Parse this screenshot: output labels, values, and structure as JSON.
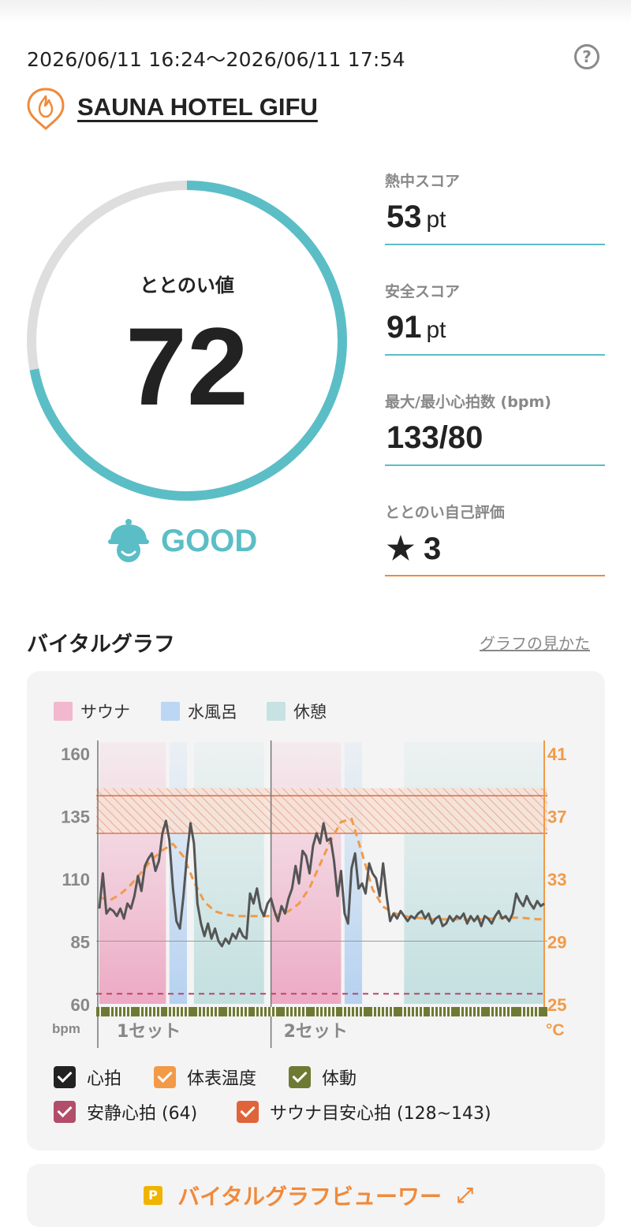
{
  "session": {
    "date_range": "2026/06/11 16:24〜2026/06/11 17:54"
  },
  "facility": {
    "name": "SAUNA HOTEL GIFU",
    "icon": "sauna-flame-pin-icon"
  },
  "totonoi": {
    "label": "ととのい値",
    "value": "72",
    "progress": 0.72,
    "status": "GOOD",
    "status_icon": "smiling-face-with-sauna-hat-icon"
  },
  "stats": [
    {
      "label": "熱中スコア",
      "value": "53",
      "unit": "pt"
    },
    {
      "label": "安全スコア",
      "value": "91",
      "unit": "pt"
    },
    {
      "label": "最大/最小心拍数 (bpm)",
      "value": "133/80",
      "unit": ""
    },
    {
      "label": "ととのい自己評価",
      "value": "3",
      "unit": "",
      "icon": "star-icon"
    }
  ],
  "graph": {
    "title": "バイタルグラフ",
    "howto_link": "グラフの見かた",
    "legend": [
      {
        "label": "サウナ",
        "color": "#f2b9ce"
      },
      {
        "label": "水風呂",
        "color": "#bcd7f3"
      },
      {
        "label": "休憩",
        "color": "#c7e2e2"
      }
    ],
    "checkboxes": [
      {
        "label": "心拍",
        "color": "#222222"
      },
      {
        "label": "体表温度",
        "color": "#f29a48"
      },
      {
        "label": "体動",
        "color": "#6e7a33"
      },
      {
        "label": "安静心拍 (64)",
        "color": "#b24e6a"
      },
      {
        "label": "サウナ目安心拍 (128~143)",
        "color": "#e0643a"
      }
    ]
  },
  "chart_data": {
    "type": "line",
    "y_left": {
      "ticks": [
        160,
        135,
        110,
        85,
        60
      ],
      "unit": "bpm",
      "range": [
        60,
        160
      ]
    },
    "y_right": {
      "ticks": [
        41,
        37,
        33,
        29,
        25
      ],
      "unit": "°C",
      "range": [
        25,
        41
      ]
    },
    "set_labels": [
      "1セット",
      "2セット"
    ],
    "resting_hr": 64,
    "sauna_target_hr": [
      128,
      143
    ],
    "phases": [
      {
        "type": "sauna",
        "t": [
          0,
          19
        ]
      },
      {
        "type": "water",
        "t": [
          20,
          25
        ]
      },
      {
        "type": "rest",
        "t": [
          27,
          47
        ]
      },
      {
        "type": "sauna",
        "t": [
          49,
          69
        ]
      },
      {
        "type": "water",
        "t": [
          70,
          75
        ]
      },
      {
        "type": "rest",
        "t": [
          87,
          127
        ]
      }
    ],
    "series": [
      {
        "name": "心拍",
        "x": [
          0,
          1,
          2,
          3,
          4,
          5,
          6,
          7,
          8,
          9,
          10,
          11,
          12,
          13,
          14,
          15,
          16,
          17,
          18,
          19,
          20,
          21,
          22,
          23,
          24,
          25,
          26,
          27,
          28,
          29,
          30,
          31,
          32,
          33,
          34,
          35,
          36,
          37,
          38,
          39,
          40,
          41,
          42,
          43,
          44,
          45,
          46,
          47,
          48,
          49,
          50,
          51,
          52,
          53,
          54,
          55,
          56,
          57,
          58,
          59,
          60,
          61,
          62,
          63,
          64,
          65,
          66,
          67,
          68,
          69,
          70,
          71,
          72,
          73,
          74,
          75,
          76,
          77,
          78,
          79,
          80,
          81,
          82,
          83,
          84,
          85,
          86,
          87,
          88,
          89,
          90,
          91,
          92,
          93,
          94,
          95,
          96,
          97,
          98,
          99,
          100,
          101,
          102,
          103,
          104,
          105,
          106,
          107,
          108,
          109,
          110,
          111,
          112,
          113,
          114,
          115,
          116,
          117,
          118,
          119,
          120,
          121,
          122,
          123,
          124,
          125,
          126,
          127
        ],
        "y": [
          98,
          112,
          96,
          98,
          97,
          95,
          98,
          94,
          100,
          98,
          103,
          111,
          105,
          115,
          118,
          120,
          113,
          117,
          128,
          133,
          125,
          106,
          93,
          90,
          103,
          119,
          132,
          124,
          100,
          92,
          87,
          92,
          86,
          90,
          85,
          83,
          86,
          84,
          88,
          86,
          90,
          87,
          86,
          104,
          100,
          106,
          98,
          95,
          100,
          102,
          97,
          93,
          99,
          96,
          102,
          106,
          115,
          108,
          121,
          119,
          112,
          123,
          128,
          124,
          132,
          125,
          126,
          117,
          103,
          113,
          96,
          92,
          114,
          120,
          106,
          108,
          104,
          116,
          112,
          110,
          103,
          116,
          103,
          93,
          96,
          94,
          97,
          95,
          93,
          95,
          94,
          96,
          97,
          94,
          96,
          92,
          94,
          95,
          91,
          92,
          95,
          93,
          95,
          94,
          96,
          92,
          95,
          93,
          95,
          91,
          95,
          94,
          92,
          95,
          97,
          94,
          95,
          93,
          96,
          104,
          101,
          99,
          103,
          100,
          98,
          101,
          99,
          100
        ]
      },
      {
        "name": "体表温度",
        "x": [
          0,
          3,
          6,
          9,
          12,
          15,
          18,
          21,
          24,
          27,
          30,
          33,
          36,
          39,
          42,
          45,
          48,
          51,
          54,
          57,
          60,
          63,
          66,
          69,
          72,
          75,
          78,
          81,
          84,
          87,
          90,
          95,
          100,
          105,
          110,
          115,
          120,
          125,
          127
        ],
        "y": [
          31.8,
          31.6,
          32.0,
          32.6,
          33.4,
          34.2,
          34.8,
          35.2,
          34.4,
          32.8,
          31.5,
          30.9,
          30.7,
          30.6,
          30.6,
          30.6,
          30.6,
          30.7,
          30.9,
          31.4,
          32.4,
          33.9,
          35.4,
          36.6,
          36.8,
          34.6,
          32.3,
          31.2,
          30.8,
          30.6,
          30.5,
          30.4,
          30.4,
          30.4,
          30.4,
          30.5,
          30.5,
          30.4,
          30.4
        ]
      }
    ]
  }
}
